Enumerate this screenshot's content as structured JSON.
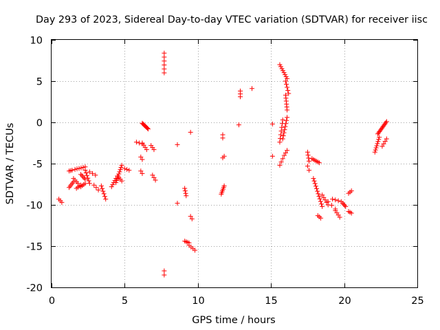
{
  "chart_data": {
    "type": "scatter",
    "title": "Day 293 of 2023, Sidereal Day-to-day VTEC variation (SDTVAR) for receiver iisc",
    "xlabel": "GPS time / hours",
    "ylabel": "SDTVAR / TECUs",
    "xlim": [
      0,
      25
    ],
    "ylim": [
      -20,
      10
    ],
    "x_ticks": [
      0,
      5,
      10,
      15,
      20,
      25
    ],
    "x_tick_labels": [
      "0",
      "5",
      "10",
      "15",
      "20",
      "25"
    ],
    "y_ticks": [
      -20,
      -15,
      -10,
      -5,
      0,
      5,
      10
    ],
    "y_tick_labels": [
      "-20",
      "-15",
      "-10",
      "-5",
      "0",
      "5",
      "10"
    ],
    "grid": true,
    "marker": "+",
    "series_color": "#ff0000",
    "segments": [
      {
        "x0": 0.5,
        "x1": 0.7,
        "y0": -9.3,
        "y1": -9.7,
        "n": 3
      },
      {
        "x0": 1.2,
        "x1": 1.5,
        "y0": -7.9,
        "y1": -7.2,
        "n": 5
      },
      {
        "x0": 1.2,
        "x1": 1.4,
        "y0": -5.9,
        "y1": -5.8,
        "n": 3
      },
      {
        "x0": 1.5,
        "x1": 1.8,
        "y0": -6.8,
        "y1": -7.4,
        "n": 4
      },
      {
        "x0": 1.6,
        "x1": 2.3,
        "y0": -5.7,
        "y1": -5.4,
        "n": 6
      },
      {
        "x0": 1.7,
        "x1": 2.0,
        "y0": -8.0,
        "y1": -7.6,
        "n": 4
      },
      {
        "x0": 2.0,
        "x1": 2.3,
        "y0": -6.3,
        "y1": -6.9,
        "n": 5
      },
      {
        "x0": 2.0,
        "x1": 2.3,
        "y0": -7.8,
        "y1": -7.4,
        "n": 4
      },
      {
        "x0": 2.3,
        "x1": 2.6,
        "y0": -5.8,
        "y1": -7.4,
        "n": 6
      },
      {
        "x0": 2.6,
        "x1": 3.0,
        "y0": -6.0,
        "y1": -6.4,
        "n": 3
      },
      {
        "x0": 2.9,
        "x1": 3.2,
        "y0": -7.6,
        "y1": -8.2,
        "n": 3
      },
      {
        "x0": 3.4,
        "x1": 3.7,
        "y0": -7.7,
        "y1": -9.3,
        "n": 6
      },
      {
        "x0": 4.1,
        "x1": 4.4,
        "y0": -7.8,
        "y1": -6.8,
        "n": 5
      },
      {
        "x0": 4.4,
        "x1": 4.8,
        "y0": -7.3,
        "y1": -5.2,
        "n": 9
      },
      {
        "x0": 4.5,
        "x1": 4.8,
        "y0": -6.5,
        "y1": -7.1,
        "n": 4
      },
      {
        "x0": 5.0,
        "x1": 5.3,
        "y0": -5.6,
        "y1": -5.8,
        "n": 3
      },
      {
        "x0": 5.8,
        "x1": 6.2,
        "y0": -2.4,
        "y1": -2.6,
        "n": 3
      },
      {
        "x0": 6.1,
        "x1": 6.2,
        "y0": -4.2,
        "y1": -4.5,
        "n": 2
      },
      {
        "x0": 6.1,
        "x1": 6.2,
        "y0": -5.9,
        "y1": -6.2,
        "n": 2
      },
      {
        "x0": 6.2,
        "x1": 6.5,
        "y0": -2.5,
        "y1": -3.3,
        "n": 4
      },
      {
        "x0": 6.2,
        "x1": 6.6,
        "y0": -0.1,
        "y1": -0.8,
        "n": 9
      },
      {
        "x0": 6.8,
        "x1": 7.0,
        "y0": -2.8,
        "y1": -3.3,
        "n": 3
      },
      {
        "x0": 6.9,
        "x1": 7.1,
        "y0": -6.4,
        "y1": -7.0,
        "n": 3
      },
      {
        "x0": 7.7,
        "x1": 7.7,
        "y0": 8.4,
        "y1": 6.0,
        "n": 6
      },
      {
        "x0": 7.7,
        "x1": 7.7,
        "y0": -18.0,
        "y1": -18.5,
        "n": 2
      },
      {
        "x0": 8.6,
        "x1": 8.6,
        "y0": -2.7,
        "y1": -2.7,
        "n": 1
      },
      {
        "x0": 8.6,
        "x1": 8.6,
        "y0": -9.8,
        "y1": -9.8,
        "n": 1
      },
      {
        "x0": 9.1,
        "x1": 9.2,
        "y0": -8.0,
        "y1": -8.9,
        "n": 4
      },
      {
        "x0": 9.1,
        "x1": 9.4,
        "y0": -14.4,
        "y1": -14.6,
        "n": 4
      },
      {
        "x0": 9.4,
        "x1": 9.8,
        "y0": -14.9,
        "y1": -15.5,
        "n": 4
      },
      {
        "x0": 9.5,
        "x1": 9.6,
        "y0": -11.4,
        "y1": -11.7,
        "n": 2
      },
      {
        "x0": 9.5,
        "x1": 9.5,
        "y0": -1.2,
        "y1": -1.2,
        "n": 1
      },
      {
        "x0": 11.6,
        "x1": 11.8,
        "y0": -8.7,
        "y1": -7.7,
        "n": 6
      },
      {
        "x0": 11.7,
        "x1": 11.8,
        "y0": -4.3,
        "y1": -4.1,
        "n": 2
      },
      {
        "x0": 11.7,
        "x1": 11.7,
        "y0": -1.5,
        "y1": -1.9,
        "n": 2
      },
      {
        "x0": 12.8,
        "x1": 12.8,
        "y0": -0.3,
        "y1": -0.3,
        "n": 1
      },
      {
        "x0": 12.9,
        "x1": 12.9,
        "y0": 3.8,
        "y1": 3.1,
        "n": 3
      },
      {
        "x0": 13.7,
        "x1": 13.7,
        "y0": 4.1,
        "y1": 4.1,
        "n": 1
      },
      {
        "x0": 15.1,
        "x1": 15.1,
        "y0": -0.2,
        "y1": -0.2,
        "n": 1
      },
      {
        "x0": 15.1,
        "x1": 15.1,
        "y0": -4.1,
        "y1": -4.1,
        "n": 1
      },
      {
        "x0": 15.6,
        "x1": 15.8,
        "y0": -2.4,
        "y1": 0.3,
        "n": 7
      },
      {
        "x0": 15.6,
        "x1": 15.8,
        "y0": -5.2,
        "y1": -4.4,
        "n": 3
      },
      {
        "x0": 15.6,
        "x1": 16.1,
        "y0": 7.0,
        "y1": 5.3,
        "n": 8
      },
      {
        "x0": 15.8,
        "x1": 16.1,
        "y0": -2.0,
        "y1": 0.6,
        "n": 8
      },
      {
        "x0": 15.9,
        "x1": 16.1,
        "y0": -4.0,
        "y1": -3.4,
        "n": 3
      },
      {
        "x0": 16.0,
        "x1": 16.1,
        "y0": 3.3,
        "y1": 1.5,
        "n": 6
      },
      {
        "x0": 16.0,
        "x1": 16.2,
        "y0": 5.0,
        "y1": 3.5,
        "n": 5
      },
      {
        "x0": 17.5,
        "x1": 17.6,
        "y0": -3.6,
        "y1": -4.7,
        "n": 4
      },
      {
        "x0": 17.5,
        "x1": 17.6,
        "y0": -5.3,
        "y1": -5.8,
        "n": 2
      },
      {
        "x0": 17.8,
        "x1": 18.3,
        "y0": -4.4,
        "y1": -4.9,
        "n": 6
      },
      {
        "x0": 17.9,
        "x1": 18.5,
        "y0": -6.8,
        "y1": -10.2,
        "n": 12
      },
      {
        "x0": 18.2,
        "x1": 18.4,
        "y0": -11.3,
        "y1": -11.6,
        "n": 3
      },
      {
        "x0": 18.5,
        "x1": 18.9,
        "y0": -8.8,
        "y1": -10.0,
        "n": 5
      },
      {
        "x0": 18.9,
        "x1": 19.4,
        "y0": -9.6,
        "y1": -10.5,
        "n": 3
      },
      {
        "x0": 19.2,
        "x1": 19.8,
        "y0": -9.3,
        "y1": -9.6,
        "n": 4
      },
      {
        "x0": 19.4,
        "x1": 19.7,
        "y0": -10.7,
        "y1": -11.5,
        "n": 4
      },
      {
        "x0": 19.9,
        "x1": 20.1,
        "y0": -9.8,
        "y1": -10.2,
        "n": 4
      },
      {
        "x0": 20.3,
        "x1": 20.5,
        "y0": -8.6,
        "y1": -8.3,
        "n": 3
      },
      {
        "x0": 20.3,
        "x1": 20.5,
        "y0": -10.8,
        "y1": -11.0,
        "n": 3
      },
      {
        "x0": 22.1,
        "x1": 22.4,
        "y0": -3.6,
        "y1": -1.8,
        "n": 8
      },
      {
        "x0": 22.3,
        "x1": 22.9,
        "y0": -1.4,
        "y1": 0.1,
        "n": 12
      },
      {
        "x0": 22.6,
        "x1": 22.9,
        "y0": -2.9,
        "y1": -2.0,
        "n": 4
      }
    ]
  }
}
